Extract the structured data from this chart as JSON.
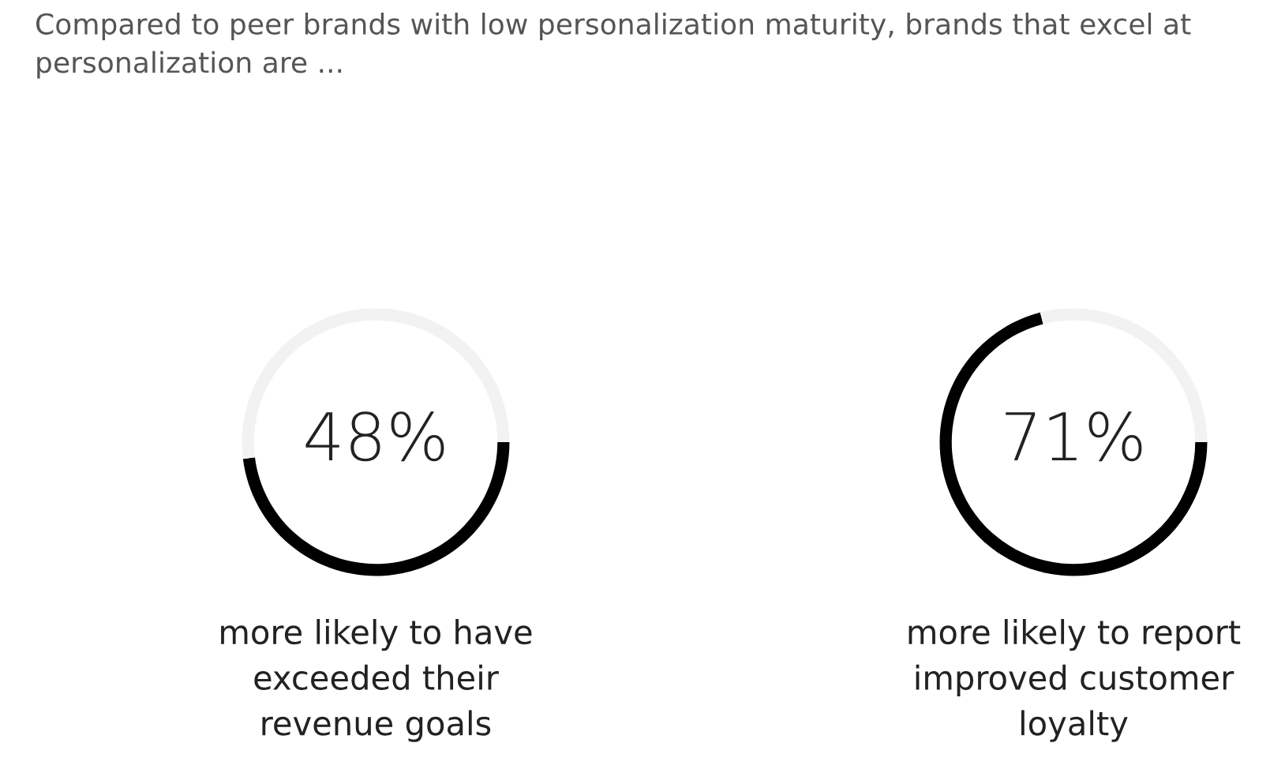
{
  "chart_data": [
    {
      "type": "donut",
      "title": "Compared to peer brands with low personalization maturity, brands that excel at\npersonalization are ...",
      "categories": [
        null,
        null
      ],
      "values": [
        48,
        52
      ],
      "colors": [
        "#000000",
        "#f2f2f2"
      ],
      "annotations": [
        "48%"
      ],
      "xlabel": "more likely to have\nexceeded their\nrevenue goals"
    },
    {
      "type": "donut",
      "categories": [
        null,
        null
      ],
      "values": [
        71,
        29
      ],
      "colors": [
        "#000000",
        "#f2f2f2"
      ],
      "annotations": [
        "71%"
      ],
      "xlabel": "more likely to report\nimproved customer\nloyalty"
    }
  ]
}
